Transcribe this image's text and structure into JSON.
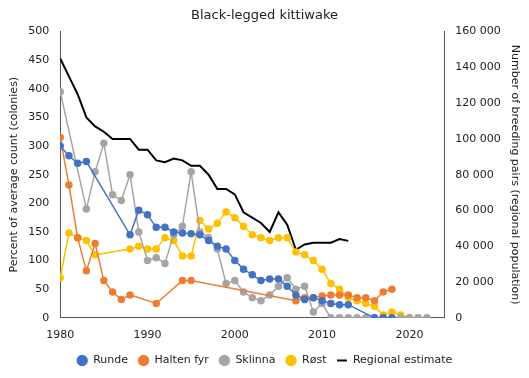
{
  "chart_data": {
    "type": "line",
    "title": "Black-legged kittiwake",
    "y_label": "Percent of average count (colonies)",
    "y2_label": "Number of breeding pairs (regional population)",
    "xlim": [
      1980,
      2024
    ],
    "xticks": [
      1980,
      1990,
      2000,
      2010,
      2020
    ],
    "ylim": [
      0,
      500
    ],
    "yticks": [
      0,
      50,
      100,
      150,
      200,
      250,
      300,
      350,
      400,
      450,
      500
    ],
    "y2lim": [
      0,
      160000
    ],
    "y2ticks": [
      {
        "value": 0,
        "label": "0"
      },
      {
        "value": 20000,
        "label": "20 000"
      },
      {
        "value": 40000,
        "label": "40 000"
      },
      {
        "value": 60000,
        "label": "60 000"
      },
      {
        "value": 80000,
        "label": "80 000"
      },
      {
        "value": 100000,
        "label": "100 000"
      },
      {
        "value": 120000,
        "label": "120 000"
      },
      {
        "value": 140000,
        "label": "140 000"
      },
      {
        "value": 160000,
        "label": "160 000"
      }
    ],
    "grid": false,
    "legend": "bottom",
    "series": [
      {
        "name": "Runde",
        "color": "#4472c4",
        "marker": "circle",
        "axis": "y",
        "x": [
          1980,
          1981,
          1982,
          1983,
          1988,
          1989,
          1990,
          1991,
          1992,
          1993,
          1994,
          1995,
          1996,
          1997,
          1998,
          1999,
          2000,
          2001,
          2002,
          2003,
          2004,
          2005,
          2006,
          2007,
          2008,
          2009,
          2010,
          2011,
          2012,
          2013,
          2016,
          2017,
          2018
        ],
        "values": [
          300,
          283,
          270,
          273,
          145,
          188,
          180,
          158,
          158,
          150,
          148,
          147,
          145,
          135,
          125,
          120,
          100,
          85,
          75,
          65,
          68,
          68,
          55,
          40,
          32,
          35,
          30,
          25,
          23,
          23,
          0,
          0,
          0
        ]
      },
      {
        "name": "Halten fyr",
        "color": "#ed7d31",
        "marker": "circle",
        "axis": "y",
        "x": [
          1980,
          1981,
          1982,
          1983,
          1984,
          1985,
          1986,
          1987,
          1988,
          1991,
          1994,
          1995,
          2007,
          2008,
          2009,
          2010,
          2011,
          2012,
          2013,
          2014,
          2015,
          2016,
          2017,
          2018
        ],
        "values": [
          315,
          232,
          140,
          82,
          130,
          65,
          45,
          32,
          40,
          25,
          65,
          65,
          30,
          35,
          35,
          38,
          40,
          40,
          40,
          35,
          35,
          30,
          45,
          50
        ]
      },
      {
        "name": "Sklinna",
        "color": "#a5a5a5",
        "marker": "circle",
        "axis": "y",
        "x": [
          1980,
          1983,
          1984,
          1985,
          1986,
          1987,
          1988,
          1989,
          1990,
          1991,
          1992,
          1993,
          1994,
          1995,
          1996,
          1997,
          1998,
          1999,
          2000,
          2001,
          2002,
          2003,
          2004,
          2005,
          2006,
          2007,
          2008,
          2009,
          2010,
          2011,
          2012,
          2013,
          2014,
          2015,
          2016,
          2017,
          2018,
          2019,
          2020,
          2021,
          2022
        ],
        "values": [
          395,
          190,
          255,
          305,
          215,
          205,
          250,
          150,
          100,
          105,
          95,
          145,
          160,
          255,
          150,
          140,
          120,
          60,
          65,
          45,
          35,
          30,
          40,
          55,
          70,
          50,
          55,
          10,
          25,
          0,
          0,
          0,
          0,
          0,
          0,
          0,
          0,
          0,
          0,
          0,
          0
        ]
      },
      {
        "name": "Røst",
        "color": "#ffc000",
        "marker": "circle",
        "axis": "y",
        "x": [
          1980,
          1981,
          1982,
          1983,
          1984,
          1988,
          1989,
          1990,
          1991,
          1992,
          1993,
          1994,
          1995,
          1996,
          1997,
          1998,
          1999,
          2000,
          2001,
          2002,
          2003,
          2004,
          2005,
          2006,
          2007,
          2008,
          2009,
          2010,
          2011,
          2012,
          2013,
          2014,
          2015,
          2016,
          2017,
          2018,
          2019,
          2020,
          2021
        ],
        "values": [
          70,
          148,
          140,
          135,
          110,
          120,
          125,
          120,
          120,
          140,
          135,
          108,
          108,
          170,
          155,
          165,
          185,
          175,
          160,
          145,
          140,
          135,
          140,
          140,
          115,
          110,
          100,
          85,
          60,
          50,
          35,
          30,
          25,
          20,
          5,
          10,
          5,
          0,
          0
        ]
      },
      {
        "name": "Regional estimate",
        "color": "#000000",
        "marker": "none",
        "axis": "y2",
        "x": [
          1980,
          1981,
          1982,
          1983,
          1984,
          1985,
          1986,
          1987,
          1988,
          1989,
          1990,
          1991,
          1992,
          1993,
          1994,
          1995,
          1996,
          1997,
          1998,
          1999,
          2000,
          2001,
          2002,
          2003,
          2004,
          2005,
          2006,
          2007,
          2008,
          2009,
          2010,
          2011,
          2012,
          2013
        ],
        "values": [
          145000,
          135000,
          125000,
          112000,
          107000,
          104000,
          100000,
          100000,
          100000,
          94000,
          94000,
          88000,
          87000,
          89000,
          88000,
          85000,
          85000,
          80000,
          72000,
          72000,
          69000,
          59000,
          56000,
          53000,
          48000,
          59000,
          52000,
          38000,
          41000,
          42000,
          42000,
          42000,
          44000,
          43000
        ]
      }
    ]
  }
}
